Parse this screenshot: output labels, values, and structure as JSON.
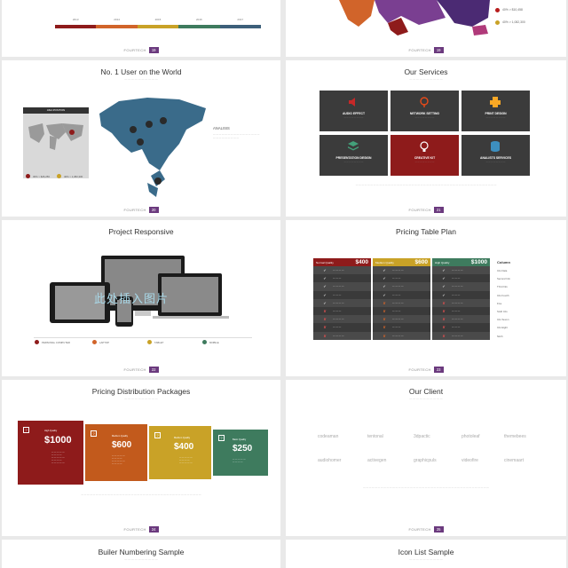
{
  "slides": [
    {
      "page": "19"
    },
    {
      "page": "19",
      "legend": [
        {
          "value": "40% > $10,458",
          "color": "#b71c1c"
        },
        {
          "value": "40% > 1,082,300",
          "color": "#c9a227"
        }
      ]
    },
    {
      "title": "No. 1 User on the World",
      "page": "20",
      "map_panel_title": "ASIA POSITION",
      "heading": "ANALISIS",
      "legend": [
        {
          "value": "30% > $26,256",
          "color": "#8e1b1b"
        },
        {
          "value": "40% > 1,082,300",
          "color": "#c9a227"
        }
      ]
    },
    {
      "title": "Our Services",
      "page": "21",
      "services": [
        {
          "label": "AUDIO EFFECT",
          "icon": "speaker-icon",
          "color": "#c62828"
        },
        {
          "label": "NETWORK SETTING",
          "icon": "network-icon",
          "color": "#e64a19"
        },
        {
          "label": "PRINT DESIGN",
          "icon": "printer-icon",
          "color": "#f9a825"
        },
        {
          "label": "PRESENTATION DESIGN",
          "icon": "layers-icon",
          "color": "#43a07a"
        },
        {
          "label": "CREATIVE KIT",
          "icon": "lightbulb-icon",
          "color": "#ffffff"
        },
        {
          "label": "ANALISTS SERVICES",
          "icon": "database-icon",
          "color": "#3d8fbf"
        }
      ]
    },
    {
      "title": "Project Responsive",
      "page": "22",
      "placeholder": "此处插入图片",
      "features": [
        {
          "label": "PERSONAL COMPUTER",
          "color": "#8e1b1b"
        },
        {
          "label": "LAPTOP",
          "color": "#d1642a"
        },
        {
          "label": "TABLET",
          "color": "#c9a227"
        },
        {
          "label": "MOBILE",
          "color": "#3e7b5e"
        }
      ]
    },
    {
      "title": "Pricing Table Plan",
      "page": "23",
      "column_label": "Column",
      "plans": [
        {
          "name": "Normal Quality",
          "price": "$400",
          "color": "#8e1b1b"
        },
        {
          "name": "Medium Quality",
          "price": "$600",
          "color": "#c9a227"
        },
        {
          "name": "High Quality",
          "price": "$1000",
          "color": "#3e7b5e"
        }
      ],
      "column_items": [
        "Info Data",
        "Second Info",
        "Third Info",
        "Info Fourth",
        "Five",
        "Sixth Info",
        "Info Seven",
        "Info Eight",
        "Ninth"
      ]
    },
    {
      "title": "Pricing Distribution Packages",
      "page": "24",
      "packages": [
        {
          "quality": "High Quality",
          "price": "$1000",
          "color": "#8e1b1b"
        },
        {
          "quality": "Medium Quality",
          "price": "$600",
          "color": "#c25a1c"
        },
        {
          "quality": "Medium Quality",
          "price": "$400",
          "color": "#c9a227"
        },
        {
          "quality": "Basic Quality",
          "price": "$250",
          "color": "#3e7b5e"
        }
      ]
    },
    {
      "title": "Our Client",
      "page": "25",
      "clients": [
        "codeaman",
        "tentonal",
        "3dpactic",
        "photoleaf",
        "themebees",
        "audiohomer",
        "activegen",
        "graphicpuls",
        "videofire",
        "cinemaart"
      ]
    },
    {
      "title": "Builer Numbering Sample"
    },
    {
      "title": "Icon List Sample"
    }
  ],
  "brand": "FOURTECH",
  "timeline_labels": [
    "2013",
    "2014",
    "2015",
    "2016",
    "2017"
  ]
}
